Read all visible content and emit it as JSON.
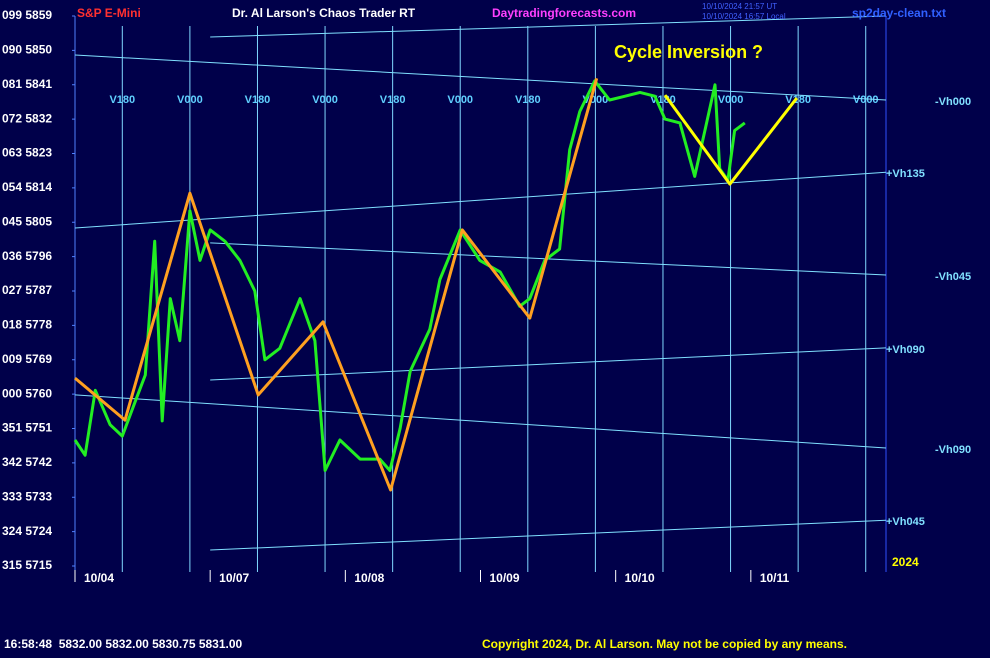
{
  "chart_data": {
    "type": "line",
    "instrument": "S&P E-Mini",
    "title": "Dr. Al Larson's Chaos Trader RT",
    "website": "Daytradingforecasts.com",
    "timestamps": [
      "10/10/2024 21:57 UT",
      "10/10/2024 16:57 Local"
    ],
    "file": "sp2day-clean.txt",
    "annotation": "Cycle Inversion ?",
    "year": "2024",
    "status": "16:58:48  5832.00 5832.00 5830.75 5831.00",
    "copyright": "Copyright 2024, Dr. Al Larson. May not be copied by any means.",
    "xlim": [
      0,
      12
    ],
    "ylim": [
      5715,
      5859
    ],
    "xticks": [
      {
        "value": 0,
        "label": "10/04"
      },
      {
        "value": 2,
        "label": "10/07"
      },
      {
        "value": 4,
        "label": "10/08"
      },
      {
        "value": 6,
        "label": "10/09"
      },
      {
        "value": 8,
        "label": "10/10"
      },
      {
        "value": 10,
        "label": "10/11"
      }
    ],
    "yticks": [
      {
        "value": 5859,
        "label": "099 5859"
      },
      {
        "value": 5850,
        "label": "090 5850"
      },
      {
        "value": 5841,
        "label": "081 5841"
      },
      {
        "value": 5832,
        "label": "072 5832"
      },
      {
        "value": 5823,
        "label": "063 5823"
      },
      {
        "value": 5814,
        "label": "054 5814"
      },
      {
        "value": 5805,
        "label": "045 5805"
      },
      {
        "value": 5796,
        "label": "036 5796"
      },
      {
        "value": 5787,
        "label": "027 5787"
      },
      {
        "value": 5778,
        "label": "018 5778"
      },
      {
        "value": 5769,
        "label": "009 5769"
      },
      {
        "value": 5760,
        "label": "000 5760"
      },
      {
        "value": 5751,
        "label": "351 5751"
      },
      {
        "value": 5742,
        "label": "342 5742"
      },
      {
        "value": 5733,
        "label": "333 5733"
      },
      {
        "value": 5724,
        "label": "324 5724"
      },
      {
        "value": 5715,
        "label": "315 5715"
      }
    ],
    "vlines": [
      {
        "value": 0.7,
        "label": "V180"
      },
      {
        "value": 1.7,
        "label": "V000"
      },
      {
        "value": 2.7,
        "label": "V180"
      },
      {
        "value": 3.7,
        "label": "V000"
      },
      {
        "value": 4.7,
        "label": "V180"
      },
      {
        "value": 5.7,
        "label": "V000"
      },
      {
        "value": 6.7,
        "label": "V180"
      },
      {
        "value": 7.7,
        "label": "V000"
      },
      {
        "value": 8.7,
        "label": "V180"
      },
      {
        "value": 9.7,
        "label": "V000"
      },
      {
        "value": 10.7,
        "label": "V180"
      },
      {
        "value": 11.7,
        "label": "V000"
      }
    ],
    "series": [
      {
        "color": "#22ee22",
        "x": [
          0,
          0.15,
          0.3,
          0.52,
          0.7,
          0.89,
          1.04,
          1.18,
          1.29,
          1.41,
          1.55,
          1.7,
          1.85,
          2.0,
          2.22,
          2.44,
          2.66,
          2.81,
          3.03,
          3.33,
          3.55,
          3.7,
          3.92,
          4.22,
          4.51,
          4.66,
          4.81,
          4.96,
          5.25,
          5.4,
          5.7,
          5.99,
          6.29,
          6.58,
          6.73,
          6.95,
          7.17,
          7.32,
          7.47,
          7.69,
          7.91,
          8.14,
          8.36,
          8.58,
          8.73,
          8.95,
          9.17,
          9.32,
          9.47,
          9.54,
          9.66,
          9.76,
          9.91
        ],
        "values": [
          5748,
          5744,
          5761,
          5752,
          5749,
          5758,
          5765,
          5800,
          5753,
          5785,
          5774,
          5808,
          5795,
          5803,
          5800,
          5795,
          5787,
          5769,
          5772,
          5785,
          5774,
          5740,
          5748,
          5743,
          5743,
          5740,
          5751,
          5766,
          5777,
          5790,
          5803,
          5795,
          5792,
          5783,
          5785,
          5795,
          5798,
          5824,
          5834,
          5842,
          5837,
          5838,
          5839,
          5838,
          5832,
          5831,
          5817,
          5829,
          5841,
          5819,
          5816,
          5829,
          5831
        ]
      },
      {
        "color": "#ffa020",
        "x": [
          0,
          0.74,
          1.7,
          2.71,
          3.67,
          4.67,
          5.73,
          6.73,
          7.72
        ],
        "values": [
          5764.2,
          5753.2,
          5812.6,
          5759.8,
          5778.9,
          5734.9,
          5803,
          5779.9,
          5842.7
        ]
      },
      {
        "color": "#ffff00",
        "x": [
          8.73,
          9.69,
          10.68
        ],
        "values": [
          5838.3,
          5815,
          5837.5
        ]
      }
    ],
    "field_lines": [
      {
        "x": [
          2,
          12
        ],
        "values": [
          5853.5,
          5859
        ]
      },
      {
        "x": [
          0,
          12
        ],
        "values": [
          5848.8,
          5837
        ],
        "label": "-Vh000"
      },
      {
        "x": [
          0,
          12
        ],
        "values": [
          5803.5,
          5818.1
        ],
        "label": "+Vh135"
      },
      {
        "x": [
          2,
          12
        ],
        "values": [
          5799.6,
          5791.2
        ],
        "label": "-Vh045"
      },
      {
        "x": [
          2,
          12
        ],
        "values": [
          5763.7,
          5772.1
        ],
        "label": "+Vh090"
      },
      {
        "x": [
          0,
          12
        ],
        "values": [
          5759.8,
          5745.9
        ],
        "label": "-Vh090"
      },
      {
        "x": [
          2,
          12
        ],
        "values": [
          5719.2,
          5727
        ],
        "label": "+Vh045"
      }
    ],
    "field_color": "#80e0ff"
  }
}
